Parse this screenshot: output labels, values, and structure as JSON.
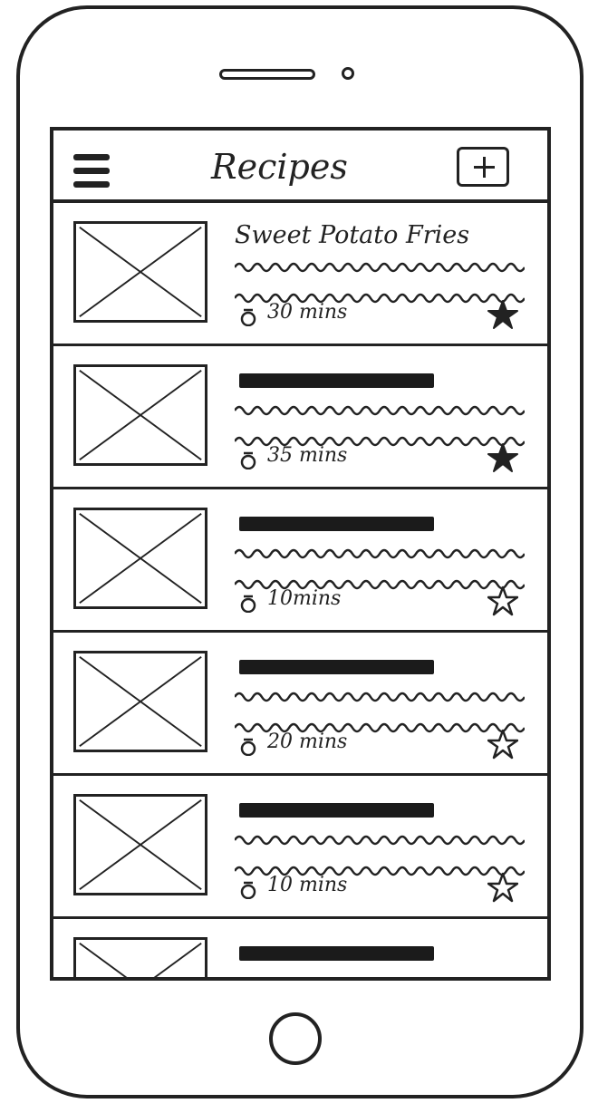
{
  "app": {
    "title": "Recipes"
  },
  "recipes": [
    {
      "name": "Sweet Potato Fries",
      "time": "30 mins",
      "favorite": true
    },
    {
      "name": "",
      "time": "35 mins",
      "favorite": true
    },
    {
      "name": "",
      "time": "10mins",
      "favorite": false
    },
    {
      "name": "",
      "time": "20 mins",
      "favorite": false
    },
    {
      "name": "",
      "time": "10 mins",
      "favorite": false
    },
    {
      "name": "",
      "time": "",
      "favorite": false
    }
  ],
  "icons": {
    "menu": "hamburger-menu-icon",
    "add": "plus-icon",
    "timer": "timer-icon",
    "favorite": "star-icon",
    "image_placeholder": "image-placeholder-icon"
  },
  "colors": {
    "ink": "#222222",
    "background": "#ffffff"
  }
}
